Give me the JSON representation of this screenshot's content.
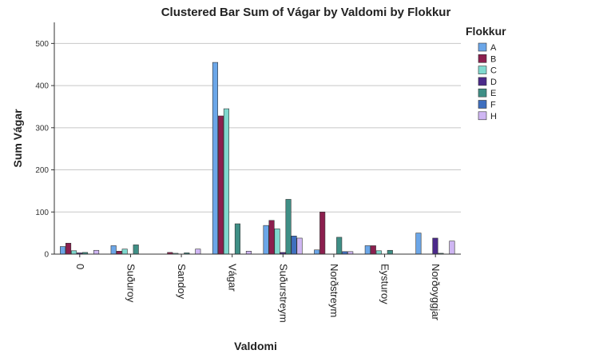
{
  "chart_data": {
    "type": "bar",
    "title": "Clustered Bar Sum of Vágar by Valdomi by Flokkur",
    "xlabel": "Valdomi",
    "ylabel": "Sum Vágar",
    "ylim": [
      0,
      550
    ],
    "yticks": [
      0,
      100,
      200,
      300,
      400,
      500
    ],
    "grid": true,
    "legend_title": "Flokkur",
    "legend_position": "right",
    "categories": [
      "0",
      "Suðuroy",
      "Sandoy",
      "Vágar",
      "Suðurstreym",
      "Norðstreym",
      "Eysturoy",
      "Norðoyggjar"
    ],
    "series": [
      {
        "name": "A",
        "color": "#6ba6e8",
        "values": [
          18,
          20,
          0,
          455,
          68,
          10,
          20,
          50
        ]
      },
      {
        "name": "B",
        "color": "#8c1f4e",
        "values": [
          26,
          7,
          4,
          328,
          80,
          100,
          20,
          0
        ]
      },
      {
        "name": "C",
        "color": "#7fd9cf",
        "values": [
          8,
          12,
          2,
          345,
          60,
          0,
          8,
          0
        ]
      },
      {
        "name": "D",
        "color": "#4b2a8a",
        "values": [
          3,
          0,
          0,
          0,
          4,
          0,
          0,
          38
        ]
      },
      {
        "name": "E",
        "color": "#3f8f86",
        "values": [
          4,
          22,
          3,
          72,
          130,
          40,
          9,
          2
        ]
      },
      {
        "name": "F",
        "color": "#3f6fbf",
        "values": [
          0,
          0,
          0,
          0,
          43,
          6,
          0,
          0
        ]
      },
      {
        "name": "H",
        "color": "#cfb6f3",
        "values": [
          9,
          0,
          12,
          7,
          38,
          6,
          0,
          31
        ]
      }
    ]
  }
}
